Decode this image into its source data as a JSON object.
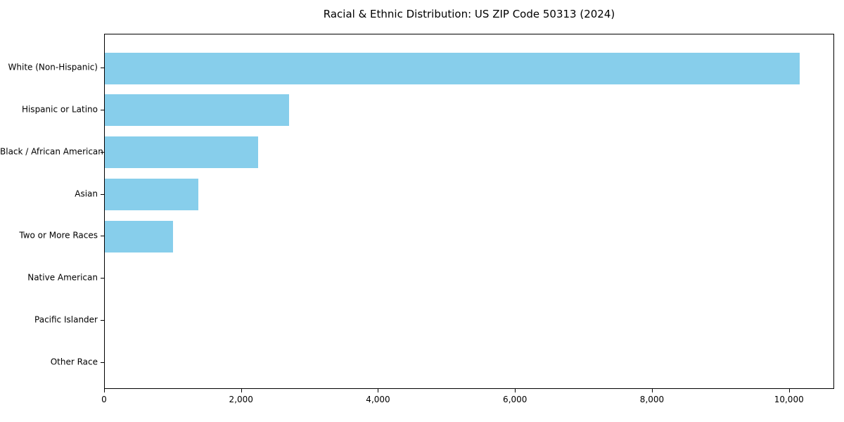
{
  "figure": {
    "title": "Racial & Ethnic Distribution: US ZIP Code 50313 (2024)"
  },
  "chart_data": {
    "type": "bar",
    "orientation": "horizontal",
    "title": "Racial & Ethnic Distribution: US ZIP Code 50313 (2024)",
    "categories": [
      "White (Non-Hispanic)",
      "Hispanic or Latino",
      "Black / African American",
      "Asian",
      "Two or More Races",
      "Native American",
      "Pacific Islander",
      "Other Race"
    ],
    "values": [
      10150,
      2690,
      2240,
      1365,
      1000,
      0,
      0,
      0
    ],
    "xlabel": "",
    "ylabel": "",
    "xlim": [
      0,
      10660
    ],
    "xticks": [
      0,
      2000,
      4000,
      6000,
      8000,
      10000
    ],
    "xtick_labels": [
      "0",
      "2,000",
      "4,000",
      "6,000",
      "8,000",
      "10,000"
    ],
    "bar_color": "#87CEEB",
    "axis_color": "#000000",
    "background_color": "#FFFFFF",
    "grid": false,
    "legend": "none"
  }
}
